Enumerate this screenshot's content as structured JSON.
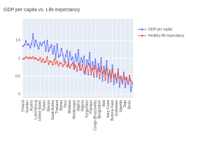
{
  "chart_data": {
    "type": "line",
    "title": "GDP per capita vs. Life expectancy",
    "categories": [
      "Finland",
      null,
      null,
      "Sweden",
      null,
      null,
      "Austria",
      null,
      null,
      "Luxembourg",
      null,
      null,
      "United States",
      null,
      null,
      "Taiwan",
      null,
      null,
      "Mexico",
      null,
      null,
      "Saudi Arabia",
      null,
      null,
      "Thailand",
      null,
      null,
      "Bolivia",
      null,
      null,
      "Peru",
      null,
      null,
      "Moldova",
      null,
      null,
      "Montenegro",
      null,
      null,
      "Algeria",
      null,
      null,
      "Nigeria",
      null,
      null,
      "Kyrgyzstan",
      null,
      null,
      "Pakistan",
      null,
      null,
      "Congo (Brazzaville)",
      null,
      null,
      "Bangladesh",
      null,
      null,
      "Mali",
      null,
      null,
      "Ivory Coast",
      null,
      null,
      "Burkina Faso",
      null,
      null,
      "Zimbabwe",
      null,
      null,
      "Uganda",
      null,
      null,
      "Togo",
      null,
      null,
      "Benin",
      null,
      null
    ],
    "series": [
      {
        "name": "GDP per capita",
        "color": "#636efa",
        "values": [
          1.34,
          1.38,
          1.49,
          1.38,
          1.4,
          1.3,
          1.4,
          1.68,
          1.33,
          1.5,
          1.37,
          1.27,
          1.44,
          1.36,
          1.43,
          1.47,
          1.21,
          1.5,
          1.2,
          1.3,
          1.38,
          1.13,
          1.34,
          0.99,
          1.4,
          1.04,
          1.08,
          1.27,
          1.1,
          0.92,
          1.07,
          1.22,
          0.8,
          1.18,
          0.96,
          1.03,
          0.74,
          1.12,
          0.92,
          1.24,
          0.68,
          1.01,
          0.89,
          1.06,
          0.57,
          0.95,
          0.82,
          1.16,
          0.55,
          0.9,
          0.71,
          0.98,
          0.49,
          0.85,
          0.64,
          1.01,
          0.38,
          0.78,
          0.57,
          0.93,
          0.33,
          0.68,
          0.47,
          0.81,
          0.28,
          0.55,
          0.4,
          0.7,
          0.21,
          0.49,
          0.35,
          0.61,
          0.19,
          0.45,
          0.3,
          0.52,
          0.09,
          0.31
        ]
      },
      {
        "name": "Healthy life expectancy",
        "color": "#ef553b",
        "values": [
          0.99,
          1.0,
          1.04,
          1.02,
          1.0,
          1.03,
          1.0,
          1.04,
          0.99,
          1.01,
          0.97,
          0.95,
          1.02,
          0.9,
          0.99,
          0.89,
          0.92,
          1.04,
          0.84,
          0.93,
          0.9,
          0.82,
          0.98,
          0.85,
          0.92,
          0.8,
          0.88,
          0.86,
          0.78,
          0.84,
          0.9,
          0.77,
          0.85,
          0.74,
          0.82,
          0.88,
          0.7,
          0.8,
          0.65,
          0.86,
          0.76,
          0.68,
          0.83,
          0.6,
          0.74,
          0.79,
          0.55,
          0.85,
          0.66,
          0.72,
          0.49,
          0.8,
          0.62,
          0.71,
          0.44,
          0.76,
          0.58,
          0.69,
          0.4,
          0.73,
          0.52,
          0.63,
          0.36,
          0.7,
          0.48,
          0.57,
          0.33,
          0.61,
          0.45,
          0.5,
          0.3,
          0.55,
          0.42,
          0.48,
          0.28,
          0.52,
          0.38,
          0.32
        ]
      }
    ],
    "ylim": [
      -0.1,
      2.1
    ],
    "yticks": [
      0,
      0.5,
      1,
      1.5
    ],
    "grid": true
  }
}
